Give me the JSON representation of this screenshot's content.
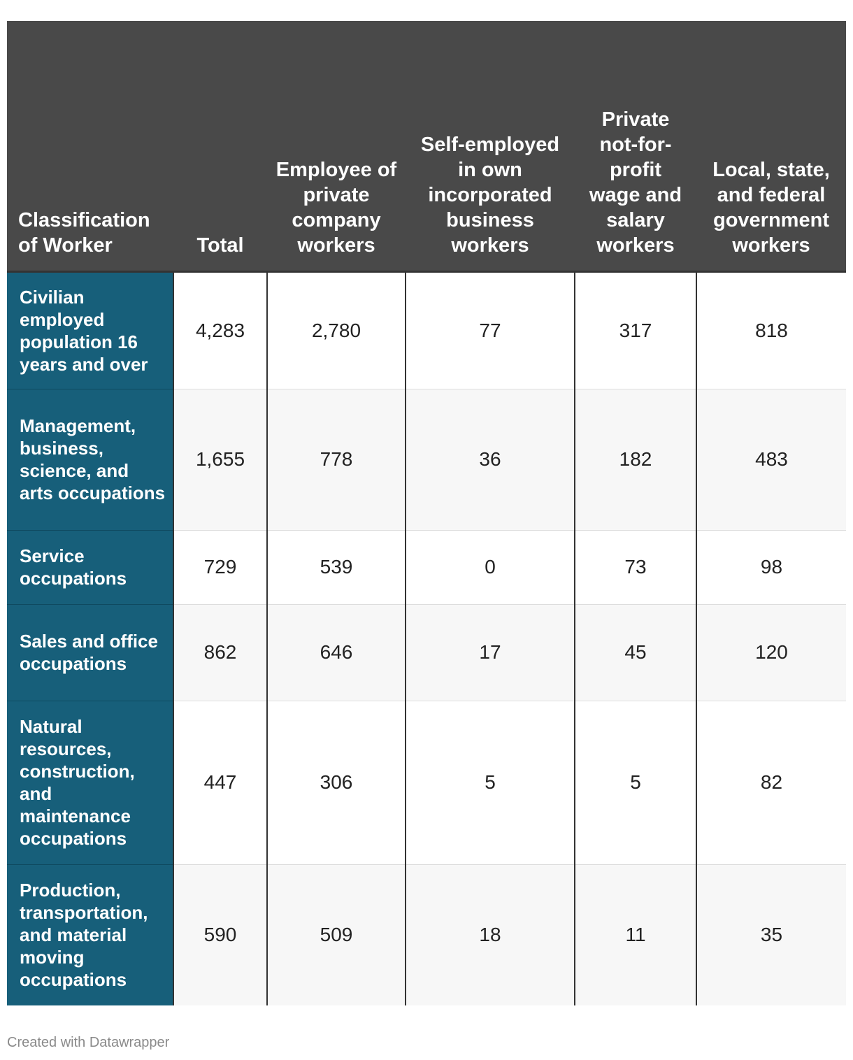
{
  "chart_data": {
    "type": "table",
    "columns": [
      "Classification of Worker",
      "Total",
      "Employee of private company workers",
      "Self-employed in own incorporated business workers",
      "Private not-for-profit wage and salary workers",
      "Local, state, and federal government workers"
    ],
    "rows": [
      {
        "label": "Civilian employed population 16 years and over",
        "values": [
          "4,283",
          "2,780",
          "77",
          "317",
          "818"
        ]
      },
      {
        "label": "Management, business, science, and arts occupations",
        "values": [
          "1,655",
          "778",
          "36",
          "182",
          "483"
        ]
      },
      {
        "label": "Service occupations",
        "values": [
          "729",
          "539",
          "0",
          "73",
          "98"
        ]
      },
      {
        "label": "Sales and office occupations",
        "values": [
          "862",
          "646",
          "17",
          "45",
          "120"
        ]
      },
      {
        "label": "Natural resources, construction, and maintenance occupations",
        "values": [
          "447",
          "306",
          "5",
          "5",
          "82"
        ]
      },
      {
        "label": "Production, transportation, and material moving occupations",
        "values": [
          "590",
          "509",
          "18",
          "11",
          "35"
        ]
      }
    ]
  },
  "footer": "Created with Datawrapper",
  "colors": {
    "header_bg": "#494949",
    "row_header_bg": "#175f7a",
    "stripe_bg": "#f7f7f7"
  }
}
